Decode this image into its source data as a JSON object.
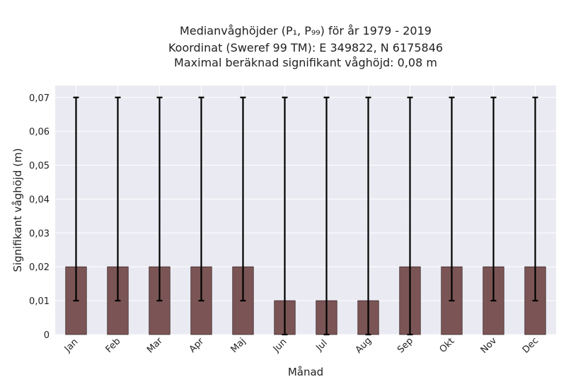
{
  "chart_data": {
    "type": "bar",
    "title_lines": [
      "Medianvåghöjder (P₁, P₉₉) för år 1979 - 2019",
      "Koordinat (Sweref 99 TM): E 349822, N 6175846",
      "Maximal beräknad signifikant våghöjd: 0,08 m"
    ],
    "xlabel": "Månad",
    "ylabel": "Signifikant våghöjd (m)",
    "categories": [
      "Jan",
      "Feb",
      "Mar",
      "Apr",
      "Maj",
      "Jun",
      "Jul",
      "Aug",
      "Sep",
      "Okt",
      "Nov",
      "Dec"
    ],
    "values": [
      0.02,
      0.02,
      0.02,
      0.02,
      0.02,
      0.01,
      0.01,
      0.01,
      0.02,
      0.02,
      0.02,
      0.02
    ],
    "error_low": [
      0.01,
      0.01,
      0.01,
      0.01,
      0.01,
      0.0,
      0.0,
      0.0,
      0.0,
      0.01,
      0.01,
      0.01
    ],
    "error_high": [
      0.07,
      0.07,
      0.07,
      0.07,
      0.07,
      0.07,
      0.07,
      0.07,
      0.07,
      0.07,
      0.07,
      0.07
    ],
    "ylim": [
      0,
      0.0735
    ],
    "yticks": [
      0,
      0.01,
      0.02,
      0.03,
      0.04,
      0.05,
      0.06,
      0.07
    ],
    "ytick_labels": [
      "0",
      "0,01",
      "0,02",
      "0,03",
      "0,04",
      "0,05",
      "0,06",
      "0,07"
    ],
    "grid": true,
    "colors": {
      "bar": "#7b5555",
      "bar_edge": "#3d2a2a",
      "error": "#000000",
      "plot_bg": "#eaeaf2",
      "grid": "#ffffff"
    }
  }
}
